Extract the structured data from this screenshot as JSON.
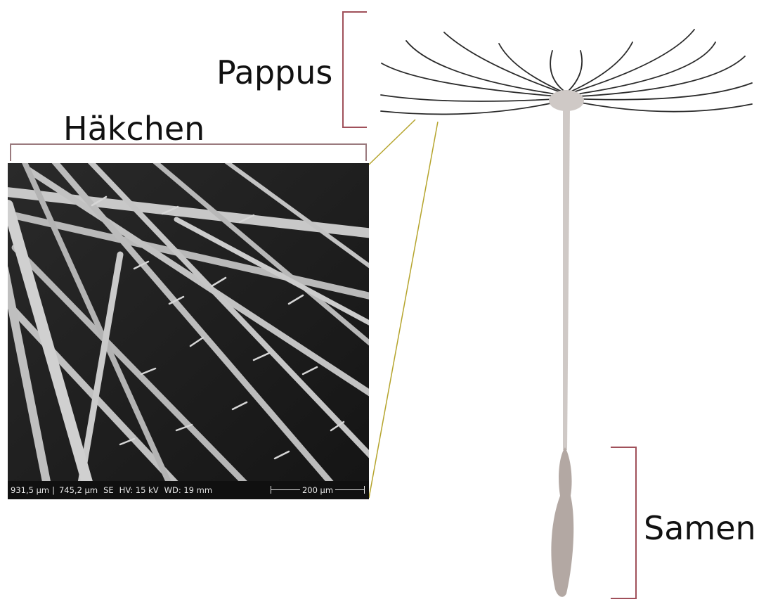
{
  "labels": {
    "pappus": "Pappus",
    "haekchen": "Häkchen",
    "samen": "Samen"
  },
  "micrograph": {
    "field_width": "931,5 µm",
    "field_height": "745,2 µm",
    "detector": "SE",
    "hv": "HV: 15 kV",
    "wd": "WD: 19 mm",
    "scale_label": "200 µm"
  },
  "colors": {
    "bracket": "#a0505a",
    "connector": "#b5a42c",
    "haekchen_bracket": "#9a7a7e",
    "seed": "#b3a8a3",
    "stalk": "#cfc9c6",
    "bristle": "#2a2a2a",
    "micrograph_background": "#1b1b1b",
    "fiber": "#bdbdbd"
  }
}
